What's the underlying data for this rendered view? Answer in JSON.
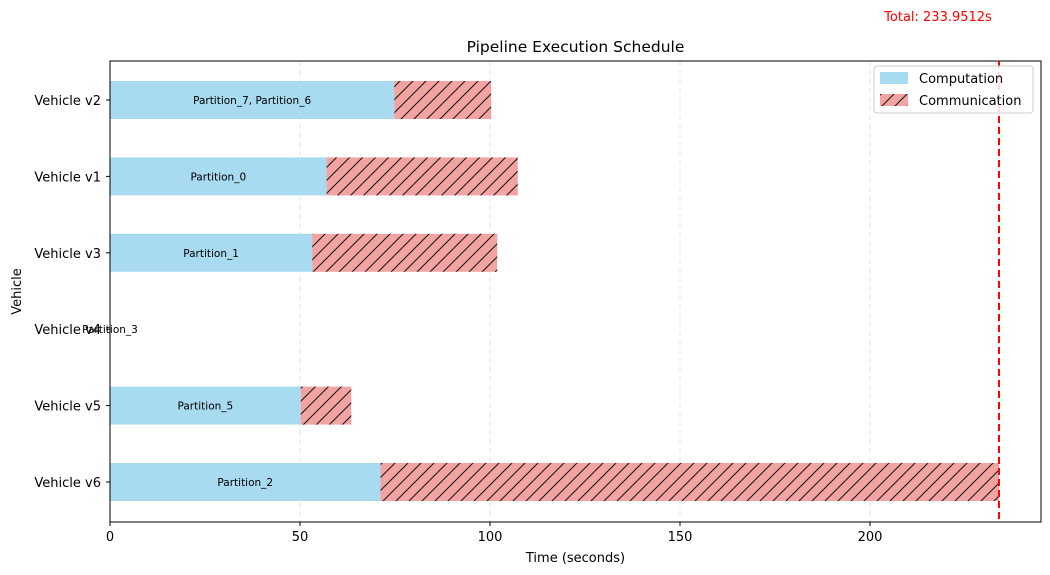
{
  "chart_data": {
    "type": "bar",
    "orientation": "horizontal-stacked",
    "title": "Pipeline Execution Schedule",
    "xlabel": "Time (seconds)",
    "ylabel": "Vehicle",
    "xlim": [
      0,
      245
    ],
    "x_ticks": [
      0,
      50,
      100,
      150,
      200
    ],
    "grid": "vertical dashed",
    "legend": {
      "position": "top-right",
      "entries": [
        "Computation",
        "Communication"
      ]
    },
    "colors": {
      "computation": "#a8dbef",
      "communication": "#f4a3a3",
      "total_line": "#ff0000"
    },
    "total_label": "Total: 233.9512s",
    "total_value": 233.9512,
    "rows": [
      {
        "vehicle": "Vehicle v2",
        "partitions": "Partition_7, Partition_6",
        "computation": 74.8,
        "communication": 25.5
      },
      {
        "vehicle": "Vehicle v1",
        "partitions": "Partition_0",
        "computation": 57.0,
        "communication": 50.3
      },
      {
        "vehicle": "Vehicle v3",
        "partitions": "Partition_1",
        "computation": 53.2,
        "communication": 48.7
      },
      {
        "vehicle": "Vehicle v4",
        "partitions": "Partition_3",
        "computation": 0,
        "communication": 0
      },
      {
        "vehicle": "Vehicle v5",
        "partitions": "Partition_5",
        "computation": 50.2,
        "communication": 13.3
      },
      {
        "vehicle": "Vehicle v6",
        "partitions": "Partition_2",
        "computation": 71.2,
        "communication": 162.75
      }
    ]
  }
}
